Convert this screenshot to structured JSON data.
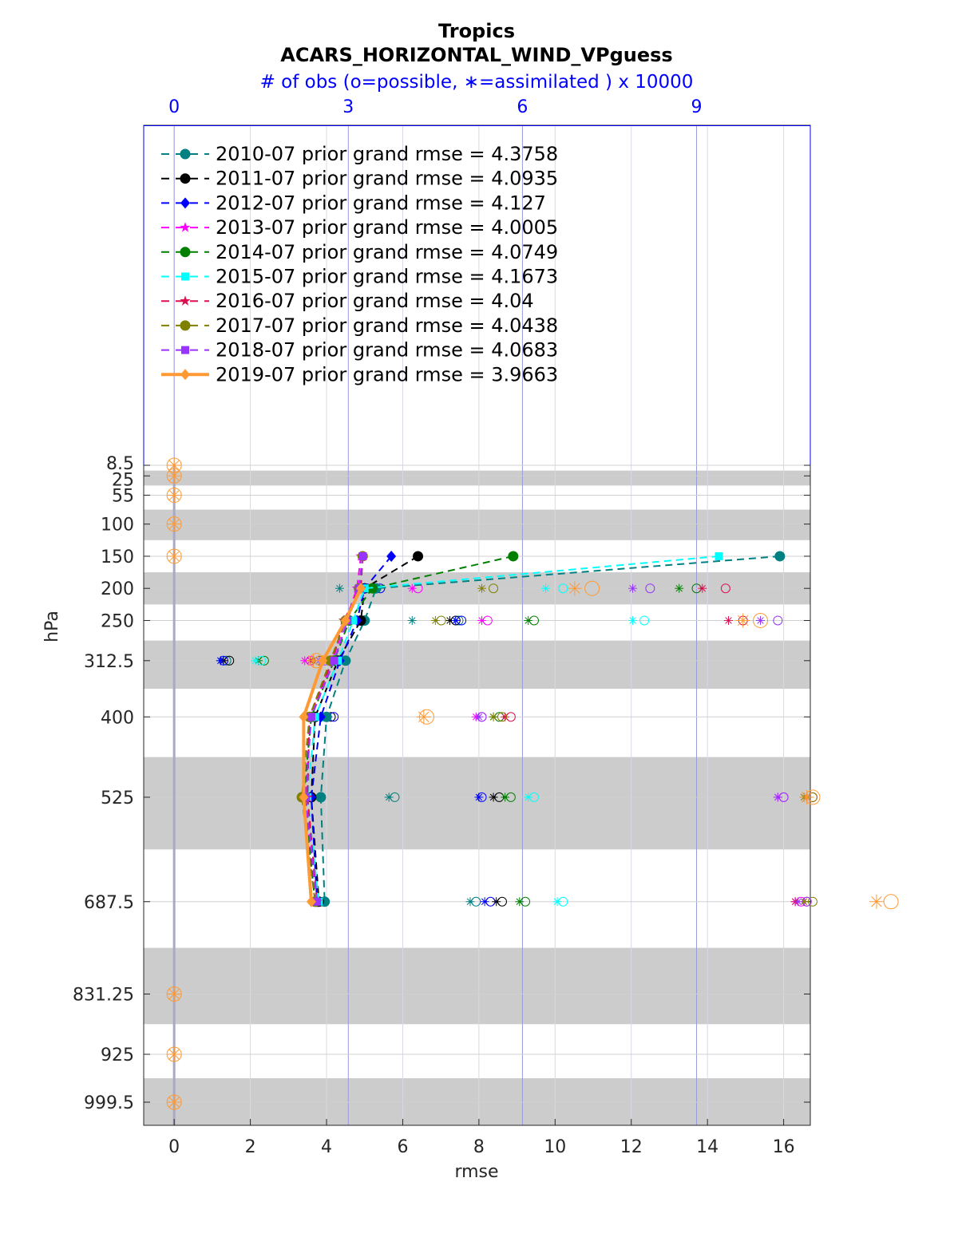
{
  "chart_data": {
    "type": "line",
    "title": "Tropics",
    "subtitle": "ACARS_HORIZONTAL_WIND_VPguess",
    "top_axis_label": "# of obs (o=possible, ∗=assimilated ) x 10000",
    "xlabel": "rmse",
    "ylabel": "hPa",
    "xlim": [
      -0.8,
      16.7
    ],
    "x_ticks": [
      "0",
      "2",
      "4",
      "6",
      "8",
      "10",
      "12",
      "14",
      "16"
    ],
    "top_ticks": [
      "0",
      "3",
      "6",
      "9"
    ],
    "top_tick_values": [
      0,
      3,
      6,
      9
    ],
    "top_scale_max": 10.5,
    "levels": [
      8.5,
      25,
      55,
      100,
      150,
      200,
      250,
      312.5,
      400,
      525,
      687.5,
      831.25,
      925,
      999.5
    ],
    "level_labels": [
      "8.5",
      "25",
      "55",
      "100",
      "150",
      "200",
      "250",
      "312.5",
      "400",
      "525",
      "687.5",
      "831.25",
      "925",
      "999.5"
    ],
    "grid": true,
    "legend_position": "top-left",
    "series": [
      {
        "name": "2010-07 prior grand rmse = 4.3758",
        "color": "#008080",
        "marker": "circle",
        "style": "dashed",
        "levels": [
          150,
          200,
          250,
          312.5,
          400,
          525,
          687.5
        ],
        "values": [
          15.9,
          5.3,
          5.0,
          4.5,
          4.0,
          3.85,
          3.95
        ],
        "possible": [
          [
            200,
            3.3
          ],
          [
            250,
            4.9
          ],
          [
            312.5,
            0.9
          ],
          [
            400,
            2.4
          ],
          [
            525,
            3.8
          ],
          [
            687.5,
            5.2
          ]
        ],
        "assimilated": [
          [
            200,
            2.85
          ],
          [
            250,
            4.1
          ],
          [
            312.5,
            0.8
          ],
          [
            400,
            2.3
          ],
          [
            525,
            3.7
          ],
          [
            687.5,
            5.1
          ]
        ]
      },
      {
        "name": "2011-07 prior grand rmse = 4.0935",
        "color": "#000000",
        "marker": "circle",
        "style": "dashed",
        "levels": [
          150,
          200,
          250,
          312.5,
          400,
          525,
          687.5
        ],
        "values": [
          6.4,
          5.0,
          4.9,
          4.3,
          3.7,
          3.6,
          3.8
        ],
        "possible": [
          [
            200,
            3.45
          ],
          [
            250,
            4.85
          ],
          [
            312.5,
            0.95
          ],
          [
            400,
            2.7
          ],
          [
            525,
            5.6
          ],
          [
            687.5,
            5.65
          ]
        ],
        "assimilated": [
          [
            200,
            3.35
          ],
          [
            250,
            4.75
          ],
          [
            312.5,
            0.85
          ],
          [
            400,
            2.6
          ],
          [
            525,
            5.5
          ],
          [
            687.5,
            5.55
          ]
        ]
      },
      {
        "name": "2012-07 prior grand rmse = 4.127",
        "color": "#0000ff",
        "marker": "diamond",
        "style": "dashed",
        "levels": [
          150,
          200,
          250,
          312.5,
          400,
          525,
          687.5
        ],
        "values": [
          5.7,
          5.0,
          4.8,
          4.35,
          3.85,
          3.6,
          3.75
        ],
        "possible": [
          [
            200,
            3.55
          ],
          [
            250,
            4.95
          ],
          [
            312.5,
            0.85
          ],
          [
            400,
            2.75
          ],
          [
            525,
            5.3
          ],
          [
            687.5,
            5.45
          ]
        ],
        "assimilated": [
          [
            200,
            3.4
          ],
          [
            250,
            4.85
          ],
          [
            312.5,
            0.8
          ],
          [
            400,
            2.65
          ],
          [
            525,
            5.25
          ],
          [
            687.5,
            5.35
          ]
        ]
      },
      {
        "name": "2013-07 prior grand rmse = 4.0005",
        "color": "#ff00ff",
        "marker": "star",
        "style": "dashed",
        "levels": [
          150,
          200,
          250,
          312.5,
          400,
          525,
          687.5
        ],
        "values": [
          4.9,
          4.8,
          4.5,
          4.15,
          3.55,
          3.45,
          3.7
        ],
        "possible": [
          [
            200,
            4.2
          ],
          [
            250,
            5.4
          ],
          [
            312.5,
            2.35
          ],
          [
            400,
            5.3
          ],
          [
            525,
            10.5
          ],
          [
            687.5,
            10.8
          ]
        ],
        "assimilated": [
          [
            200,
            4.1
          ],
          [
            250,
            5.3
          ],
          [
            312.5,
            2.25
          ],
          [
            400,
            5.2
          ],
          [
            525,
            10.4
          ],
          [
            687.5,
            10.7
          ]
        ]
      },
      {
        "name": "2014-07 prior grand rmse = 4.0749",
        "color": "#007f00",
        "marker": "hexagon",
        "style": "dashed",
        "levels": [
          150,
          200,
          250,
          312.5,
          400,
          525,
          687.5
        ],
        "values": [
          8.9,
          5.2,
          4.6,
          4.2,
          3.6,
          3.4,
          3.7
        ],
        "possible": [
          [
            200,
            9.0
          ],
          [
            250,
            6.2
          ],
          [
            312.5,
            1.55
          ],
          [
            400,
            5.6
          ],
          [
            525,
            5.8
          ],
          [
            687.5,
            6.05
          ]
        ],
        "assimilated": [
          [
            200,
            8.7
          ],
          [
            250,
            6.1
          ],
          [
            312.5,
            1.45
          ],
          [
            400,
            5.5
          ],
          [
            525,
            5.7
          ],
          [
            687.5,
            5.95
          ]
        ]
      },
      {
        "name": "2015-07 prior grand rmse = 4.1673",
        "color": "#00ffff",
        "marker": "square",
        "style": "dashed",
        "levels": [
          150,
          200,
          250,
          312.5,
          400,
          525,
          687.5
        ],
        "values": [
          14.3,
          5.0,
          4.7,
          4.3,
          3.7,
          3.5,
          3.8
        ],
        "possible": [
          [
            200,
            6.7
          ],
          [
            250,
            8.1
          ],
          [
            312.5,
            1.5
          ],
          [
            400,
            2.55
          ],
          [
            525,
            6.2
          ],
          [
            687.5,
            6.7
          ]
        ],
        "assimilated": [
          [
            200,
            6.4
          ],
          [
            250,
            7.9
          ],
          [
            312.5,
            1.4
          ],
          [
            400,
            2.45
          ],
          [
            525,
            6.1
          ],
          [
            687.5,
            6.6
          ]
        ]
      },
      {
        "name": "2016-07 prior grand rmse = 4.04",
        "color": "#de0f4e",
        "marker": "asterisk",
        "style": "dashed",
        "levels": [
          150,
          200,
          250,
          312.5,
          400,
          525,
          687.5
        ],
        "values": [
          4.95,
          4.9,
          4.45,
          4.15,
          3.55,
          3.5,
          3.75
        ],
        "possible": [
          [
            200,
            9.5
          ],
          [
            250,
            9.8
          ],
          [
            312.5,
            2.5
          ],
          [
            400,
            5.8
          ],
          [
            525,
            11.0
          ],
          [
            687.5,
            10.9
          ]
        ],
        "assimilated": [
          [
            200,
            9.1
          ],
          [
            250,
            9.55
          ],
          [
            312.5,
            2.35
          ],
          [
            400,
            5.7
          ],
          [
            525,
            10.9
          ],
          [
            687.5,
            10.7
          ]
        ]
      },
      {
        "name": "2017-07 prior grand rmse = 4.0438",
        "color": "#808000",
        "marker": "circle",
        "style": "dashed",
        "levels": [
          150,
          200,
          250,
          312.5,
          400,
          525,
          687.5
        ],
        "values": [
          4.95,
          4.85,
          4.5,
          4.1,
          3.55,
          3.35,
          3.7
        ],
        "possible": [
          [
            200,
            5.5
          ],
          [
            250,
            4.6
          ],
          [
            312.5,
            2.5
          ],
          [
            400,
            5.65
          ],
          [
            525,
            11.0
          ],
          [
            687.5,
            11.0
          ]
        ],
        "assimilated": [
          [
            200,
            5.3
          ],
          [
            250,
            4.5
          ],
          [
            312.5,
            2.4
          ],
          [
            400,
            5.5
          ],
          [
            525,
            10.85
          ],
          [
            687.5,
            10.85
          ]
        ]
      },
      {
        "name": "2018-07 prior grand rmse = 4.0683",
        "color": "#9933ff",
        "marker": "square",
        "style": "dashed",
        "levels": [
          150,
          200,
          250,
          312.5,
          400,
          525,
          687.5
        ],
        "values": [
          4.95,
          4.85,
          4.55,
          4.2,
          3.6,
          3.45,
          3.75
        ],
        "possible": [
          [
            200,
            8.2
          ],
          [
            250,
            10.4
          ],
          [
            312.5,
            2.6
          ],
          [
            400,
            5.3
          ],
          [
            525,
            10.5
          ],
          [
            687.5,
            10.9
          ]
        ],
        "assimilated": [
          [
            200,
            7.9
          ],
          [
            250,
            10.1
          ],
          [
            312.5,
            2.5
          ],
          [
            400,
            5.25
          ],
          [
            525,
            10.4
          ],
          [
            687.5,
            10.75
          ]
        ]
      },
      {
        "name": "2019-07 prior grand rmse = 3.9663",
        "color": "#ff9933",
        "marker": "diamond",
        "style": "solid",
        "levels": [
          200,
          250,
          312.5,
          400,
          525,
          687.5
        ],
        "values": [
          4.9,
          4.5,
          3.9,
          3.4,
          3.4,
          3.6
        ],
        "possible": [
          [
            8.5,
            0
          ],
          [
            25,
            0
          ],
          [
            55,
            0
          ],
          [
            100,
            0
          ],
          [
            150,
            0
          ],
          [
            200,
            7.2
          ],
          [
            250,
            10.1
          ],
          [
            312.5,
            2.45
          ],
          [
            400,
            4.35
          ],
          [
            525,
            11.0
          ],
          [
            687.5,
            12.35
          ],
          [
            831.25,
            0
          ],
          [
            925,
            0
          ],
          [
            999.5,
            0
          ]
        ],
        "assimilated": [
          [
            8.5,
            0
          ],
          [
            25,
            0
          ],
          [
            55,
            0
          ],
          [
            100,
            0
          ],
          [
            150,
            0
          ],
          [
            200,
            6.9
          ],
          [
            250,
            9.8
          ],
          [
            312.5,
            2.4
          ],
          [
            400,
            4.3
          ],
          [
            525,
            10.9
          ],
          [
            687.5,
            12.1
          ],
          [
            831.25,
            0
          ],
          [
            925,
            0
          ],
          [
            999.5,
            0
          ]
        ]
      }
    ]
  }
}
